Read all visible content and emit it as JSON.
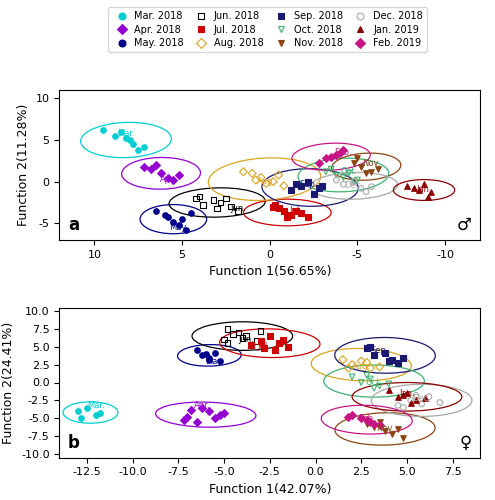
{
  "chart_data": [
    {
      "type": "scatter",
      "x_label": "Function 1(56.65%)",
      "y_label": "Function 2(11.28%)",
      "xlim": [
        12,
        -12
      ],
      "xticks": [
        10,
        5,
        0,
        -5,
        -10
      ],
      "ylim": [
        -7,
        11
      ],
      "yticks": [
        -5,
        0,
        5,
        10
      ],
      "annotations": [
        "a",
        "♂"
      ],
      "legend": "upper center",
      "series": [
        {
          "name": "Mar. 2018",
          "color": "#00CED1",
          "marker": "circle",
          "x": [
            9.5,
            8.8,
            8.2,
            8.5,
            7.8,
            7.2,
            7.5,
            8.0
          ],
          "y": [
            6.2,
            5.5,
            5.2,
            6.0,
            4.5,
            4.2,
            3.8,
            5.0
          ],
          "ellipse": {
            "cx": 8.2,
            "cy": 5.0,
            "w": 5.2,
            "h": 4.2,
            "angle": -10
          },
          "annotation": {
            "text": "Mar.",
            "x": 8.2,
            "y": 5.8
          }
        },
        {
          "name": "Apr. 2018",
          "color": "#9400D3",
          "marker": "diamond",
          "x": [
            7.2,
            6.8,
            6.2,
            5.8,
            5.5,
            6.5,
            5.2
          ],
          "y": [
            1.8,
            1.5,
            1.0,
            0.5,
            0.2,
            2.0,
            0.8
          ],
          "ellipse": {
            "cx": 6.2,
            "cy": 1.0,
            "w": 4.5,
            "h": 3.8,
            "angle": -5
          },
          "annotation": {
            "text": "Apr.",
            "x": 5.8,
            "y": 0.3
          }
        },
        {
          "name": "May. 2018",
          "color": "#00008B",
          "marker": "circle",
          "x": [
            6.5,
            5.8,
            5.2,
            4.8,
            5.5,
            6.0,
            5.0,
            4.5
          ],
          "y": [
            -3.5,
            -4.2,
            -5.2,
            -5.8,
            -4.8,
            -4.0,
            -4.5,
            -3.8
          ],
          "ellipse": {
            "cx": 5.5,
            "cy": -4.5,
            "w": 3.8,
            "h": 3.5,
            "angle": 0
          },
          "annotation": {
            "text": "May.",
            "x": 5.2,
            "y": -5.5
          }
        },
        {
          "name": "Jun. 2018",
          "color": "#000000",
          "marker": "open_square",
          "x": [
            2.8,
            2.2,
            1.8,
            3.2,
            3.8,
            3.0,
            4.2,
            4.0,
            2.5
          ],
          "y": [
            -2.5,
            -3.0,
            -3.5,
            -2.2,
            -2.8,
            -3.2,
            -2.0,
            -1.8,
            -2.0
          ],
          "ellipse": {
            "cx": 3.0,
            "cy": -2.5,
            "w": 5.5,
            "h": 3.5,
            "angle": -5
          },
          "annotation": {
            "text": "Jun.",
            "x": 1.8,
            "y": -3.2
          }
        },
        {
          "name": "Jul. 2018",
          "color": "#CC0000",
          "marker": "square",
          "x": [
            -0.2,
            -0.8,
            -1.2,
            -0.5,
            -1.0,
            -1.8,
            -0.3,
            -1.5,
            -2.2
          ],
          "y": [
            -3.0,
            -3.5,
            -4.0,
            -3.2,
            -4.2,
            -3.8,
            -2.8,
            -3.5,
            -4.2
          ],
          "ellipse": {
            "cx": -1.0,
            "cy": -3.7,
            "w": 5.0,
            "h": 3.2,
            "angle": 0
          },
          "annotation": {
            "text": "Jul.",
            "x": -1.5,
            "y": -3.5
          }
        },
        {
          "name": "Aug. 2018",
          "color": "#DAA520",
          "marker": "open_diamond",
          "x": [
            0.5,
            1.0,
            0.2,
            -0.5,
            1.5,
            -0.8,
            0.8,
            -0.2
          ],
          "y": [
            0.5,
            1.0,
            -0.2,
            0.8,
            1.2,
            -0.5,
            0.2,
            0.0
          ],
          "ellipse": {
            "cx": 0.3,
            "cy": 0.3,
            "w": 6.5,
            "h": 5.0,
            "angle": -15
          },
          "annotation": {
            "text": "Aug.",
            "x": 0.2,
            "y": 0.0
          }
        },
        {
          "name": "Sep. 2018",
          "color": "#191970",
          "marker": "square",
          "x": [
            -1.8,
            -1.2,
            -2.2,
            -2.8,
            -2.5,
            -1.5,
            -3.0
          ],
          "y": [
            -0.5,
            -1.0,
            0.0,
            -0.8,
            -1.5,
            -0.3,
            -0.5
          ],
          "ellipse": {
            "cx": -2.3,
            "cy": -0.7,
            "w": 5.5,
            "h": 4.5,
            "angle": 5
          },
          "annotation": {
            "text": "Sep.",
            "x": -2.2,
            "y": -0.3
          }
        },
        {
          "name": "Oct. 2018",
          "color": "#3CB371",
          "marker": "open_triangle_down",
          "x": [
            -3.8,
            -3.2,
            -4.2,
            -4.8,
            -4.5,
            -3.5,
            -5.0
          ],
          "y": [
            0.8,
            1.2,
            0.5,
            0.0,
            1.0,
            1.5,
            0.2
          ],
          "ellipse": {
            "cx": -4.2,
            "cy": 0.8,
            "w": 5.2,
            "h": 4.0,
            "angle": -10
          },
          "annotation": {
            "text": "Oct.",
            "x": -4.5,
            "y": 1.2
          }
        },
        {
          "name": "Nov. 2018",
          "color": "#8B4513",
          "marker": "triangle_down",
          "x": [
            -5.2,
            -4.8,
            -5.8,
            -5.5,
            -6.2,
            -5.0
          ],
          "y": [
            1.8,
            2.2,
            1.2,
            1.0,
            1.5,
            2.8
          ],
          "ellipse": {
            "cx": -5.5,
            "cy": 1.8,
            "w": 4.0,
            "h": 3.2,
            "angle": -15
          },
          "annotation": {
            "text": "Nov.",
            "x": -5.8,
            "y": 2.2
          }
        },
        {
          "name": "Dec. 2018",
          "color": "#A9A9A9",
          "marker": "open_circle",
          "x": [
            -4.2,
            -4.8,
            -5.2,
            -3.8,
            -5.8,
            -5.5
          ],
          "y": [
            -0.3,
            -0.0,
            -0.8,
            0.2,
            -0.6,
            -1.2
          ],
          "ellipse": {
            "cx": -4.8,
            "cy": -0.5,
            "w": 5.0,
            "h": 3.2,
            "angle": -5
          },
          "annotation": {
            "text": "Dec.",
            "x": -4.8,
            "y": -0.5
          }
        },
        {
          "name": "Jan. 2019",
          "color": "#8B0000",
          "marker": "triangle_up",
          "x": [
            -8.2,
            -8.8,
            -9.2,
            -7.8,
            -9.0,
            -8.5
          ],
          "y": [
            -0.8,
            -0.3,
            -1.2,
            -0.5,
            -1.8,
            -1.0
          ],
          "ellipse": {
            "cx": -8.8,
            "cy": -1.0,
            "w": 3.5,
            "h": 2.5,
            "angle": 0
          },
          "annotation": {
            "text": "Jan.",
            "x": -8.8,
            "y": -1.0
          }
        },
        {
          "name": "Feb. 2019",
          "color": "#C71585",
          "marker": "diamond",
          "x": [
            -3.2,
            -3.8,
            -2.8,
            -4.2,
            -3.5,
            -4.0
          ],
          "y": [
            2.8,
            3.2,
            2.2,
            3.8,
            3.0,
            3.5
          ],
          "ellipse": {
            "cx": -3.5,
            "cy": 3.0,
            "w": 4.5,
            "h": 3.2,
            "angle": -10
          },
          "annotation": {
            "text": "Feb.",
            "x": -4.2,
            "y": 3.5
          }
        }
      ]
    },
    {
      "type": "scatter",
      "x_label": "Function 1(42.07%)",
      "y_label": "Function 2(24.41%)",
      "xlim": [
        -14,
        9
      ],
      "xticks": [
        -12.5,
        -10.0,
        -7.5,
        -5.0,
        -2.5,
        0.0,
        2.5,
        5.0,
        7.5
      ],
      "ylim": [
        -10.5,
        10.5
      ],
      "yticks": [
        -10.0,
        -7.5,
        -5.0,
        -2.5,
        0.0,
        2.5,
        5.0,
        7.5,
        10.0
      ],
      "annotations": [
        "b",
        "♀"
      ],
      "series": [
        {
          "name": "Mar. 2018",
          "color": "#00CED1",
          "marker": "circle",
          "x": [
            -12.5,
            -12.0,
            -13.0,
            -12.8,
            -11.8
          ],
          "y": [
            -3.5,
            -4.5,
            -4.0,
            -5.0,
            -4.2
          ],
          "ellipse": {
            "cx": -12.3,
            "cy": -4.2,
            "w": 3.0,
            "h": 3.0,
            "angle": 0
          },
          "annotation": {
            "text": "Mar.",
            "x": -12.0,
            "y": -3.2
          }
        },
        {
          "name": "Apr. 2018",
          "color": "#9400D3",
          "marker": "diamond",
          "x": [
            -6.2,
            -5.8,
            -5.2,
            -5.5,
            -6.5,
            -7.0,
            -5.0,
            -6.8,
            -7.2
          ],
          "y": [
            -3.5,
            -4.0,
            -4.5,
            -5.0,
            -5.5,
            -4.8,
            -4.2,
            -3.8,
            -5.2
          ],
          "ellipse": {
            "cx": -6.0,
            "cy": -4.5,
            "w": 5.5,
            "h": 3.5,
            "angle": -5
          },
          "annotation": {
            "text": "Apr.",
            "x": -6.2,
            "y": -3.2
          }
        },
        {
          "name": "May. 2018",
          "color": "#00008B",
          "marker": "circle",
          "x": [
            -6.2,
            -5.8,
            -5.5,
            -6.5,
            -5.2,
            -6.0,
            -5.8
          ],
          "y": [
            3.8,
            3.5,
            4.2,
            4.5,
            3.0,
            4.0,
            3.2
          ],
          "ellipse": {
            "cx": -5.8,
            "cy": 3.8,
            "w": 3.5,
            "h": 3.0,
            "angle": 10
          },
          "annotation": {
            "text": "May.",
            "x": -5.5,
            "y": 3.0
          }
        },
        {
          "name": "Jun. 2018",
          "color": "#000000",
          "marker": "open_square",
          "x": [
            -4.8,
            -4.2,
            -3.8,
            -4.5,
            -3.2,
            -4.0,
            -3.0,
            -5.0,
            -4.8
          ],
          "y": [
            7.5,
            7.0,
            6.5,
            6.8,
            5.8,
            6.2,
            7.2,
            6.0,
            5.5
          ],
          "ellipse": {
            "cx": -4.0,
            "cy": 6.5,
            "w": 5.5,
            "h": 4.0,
            "angle": 0
          },
          "annotation": {
            "text": "Jun.",
            "x": -3.8,
            "y": 6.0
          }
        },
        {
          "name": "Jul. 2018",
          "color": "#CC0000",
          "marker": "square",
          "x": [
            -2.5,
            -2.0,
            -1.5,
            -3.0,
            -2.8,
            -1.8,
            -3.5,
            -2.2
          ],
          "y": [
            6.5,
            5.5,
            5.0,
            5.8,
            4.8,
            6.0,
            5.2,
            4.5
          ],
          "ellipse": {
            "cx": -2.5,
            "cy": 5.5,
            "w": 5.5,
            "h": 4.0,
            "angle": -5
          },
          "annotation": {
            "text": "Jul.",
            "x": -2.8,
            "y": 5.0
          }
        },
        {
          "name": "Aug. 2018",
          "color": "#DAA520",
          "marker": "open_diamond",
          "x": [
            2.0,
            2.5,
            3.0,
            1.5,
            3.5,
            2.8,
            1.8
          ],
          "y": [
            2.5,
            3.0,
            2.0,
            3.2,
            2.2,
            2.8,
            2.0
          ],
          "ellipse": {
            "cx": 2.5,
            "cy": 2.5,
            "w": 5.5,
            "h": 4.5,
            "angle": -10
          },
          "annotation": {
            "text": "Aug.",
            "x": 2.5,
            "y": 2.2
          }
        },
        {
          "name": "Sep. 2018",
          "color": "#191970",
          "marker": "square",
          "x": [
            3.2,
            3.8,
            4.2,
            2.8,
            4.8,
            4.0,
            3.0,
            4.5
          ],
          "y": [
            3.8,
            4.2,
            3.2,
            4.8,
            3.5,
            3.0,
            5.0,
            2.8
          ],
          "ellipse": {
            "cx": 3.8,
            "cy": 3.8,
            "w": 5.5,
            "h": 5.0,
            "angle": -5
          },
          "annotation": {
            "text": "Sep.",
            "x": 3.5,
            "y": 4.5
          }
        },
        {
          "name": "Oct. 2018",
          "color": "#3CB371",
          "marker": "open_triangle_down",
          "x": [
            2.5,
            3.0,
            3.5,
            2.0,
            4.0,
            2.8,
            3.2
          ],
          "y": [
            0.0,
            0.5,
            -0.5,
            0.8,
            -0.2,
            1.0,
            -0.8
          ],
          "ellipse": {
            "cx": 3.2,
            "cy": 0.2,
            "w": 5.5,
            "h": 4.5,
            "angle": 0
          },
          "annotation": {
            "text": "Oct.",
            "x": 3.2,
            "y": 0.0
          }
        },
        {
          "name": "Nov. 2018",
          "color": "#8B4513",
          "marker": "triangle_down",
          "x": [
            3.2,
            3.8,
            4.2,
            2.8,
            4.8,
            3.5,
            4.5
          ],
          "y": [
            -6.2,
            -6.8,
            -7.2,
            -5.8,
            -7.8,
            -5.5,
            -6.5
          ],
          "ellipse": {
            "cx": 3.8,
            "cy": -6.5,
            "w": 5.5,
            "h": 4.5,
            "angle": 10
          },
          "annotation": {
            "text": "Nov.",
            "x": 3.8,
            "y": -6.5
          }
        },
        {
          "name": "Dec. 2018",
          "color": "#A9A9A9",
          "marker": "open_circle",
          "x": [
            5.2,
            5.8,
            6.2,
            4.8,
            6.8,
            5.5,
            4.5
          ],
          "y": [
            -2.5,
            -3.0,
            -2.0,
            -3.5,
            -2.8,
            -1.8,
            -3.2
          ],
          "ellipse": {
            "cx": 5.8,
            "cy": -2.5,
            "w": 5.5,
            "h": 4.5,
            "angle": 0
          },
          "annotation": {
            "text": "Dec.",
            "x": 5.8,
            "y": -2.2
          }
        },
        {
          "name": "Jan. 2019",
          "color": "#8B0000",
          "marker": "triangle_up",
          "x": [
            4.5,
            5.0,
            5.5,
            4.0,
            6.0,
            4.8,
            5.2
          ],
          "y": [
            -2.0,
            -1.5,
            -2.5,
            -1.0,
            -2.2,
            -1.8,
            -2.8
          ],
          "ellipse": {
            "cx": 5.0,
            "cy": -2.0,
            "w": 6.0,
            "h": 4.0,
            "angle": 0
          },
          "annotation": {
            "text": "Jan.",
            "x": 5.0,
            "y": -1.5
          }
        },
        {
          "name": "Feb. 2019",
          "color": "#C71585",
          "marker": "diamond",
          "x": [
            2.5,
            3.0,
            2.0,
            3.5,
            2.8,
            1.8,
            3.2
          ],
          "y": [
            -5.0,
            -5.5,
            -4.5,
            -6.0,
            -5.2,
            -4.8,
            -5.8
          ],
          "ellipse": {
            "cx": 2.8,
            "cy": -5.2,
            "w": 5.0,
            "h": 4.0,
            "angle": -10
          },
          "annotation": {
            "text": "Feb.",
            "x": 2.8,
            "y": -5.0
          }
        }
      ]
    }
  ]
}
